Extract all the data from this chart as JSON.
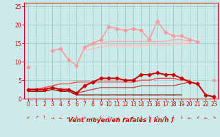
{
  "x": [
    0,
    1,
    2,
    3,
    4,
    5,
    6,
    7,
    8,
    9,
    10,
    11,
    12,
    13,
    14,
    15,
    16,
    17,
    18,
    19,
    20,
    21,
    22,
    23
  ],
  "series": [
    {
      "y": [
        8.5,
        null,
        null,
        13.0,
        13.5,
        10.5,
        9.0,
        14.0,
        15.0,
        16.0,
        19.5,
        19.0,
        18.5,
        19.0,
        18.5,
        16.0,
        21.0,
        18.0,
        17.0,
        17.0,
        16.0,
        15.5,
        null,
        5.0
      ],
      "color": "#ff9999",
      "lw": 1.2,
      "marker": "D",
      "ms": 2.5
    },
    {
      "y": [
        10.5,
        null,
        null,
        null,
        null,
        null,
        null,
        14.0,
        14.5,
        15.0,
        15.5,
        15.5,
        15.5,
        15.5,
        15.5,
        15.5,
        15.5,
        15.5,
        16.0,
        16.0,
        15.5,
        null,
        null,
        null
      ],
      "color": "#ffaaaa",
      "lw": 1.0,
      "marker": null,
      "ms": 0
    },
    {
      "y": [
        null,
        null,
        null,
        null,
        null,
        null,
        null,
        13.0,
        13.5,
        14.0,
        14.5,
        14.5,
        14.5,
        14.5,
        14.5,
        14.5,
        14.5,
        14.5,
        15.0,
        15.0,
        15.0,
        null,
        null,
        null
      ],
      "color": "#ffbbbb",
      "lw": 1.0,
      "marker": null,
      "ms": 0
    },
    {
      "y": [
        null,
        null,
        null,
        null,
        null,
        null,
        null,
        null,
        null,
        null,
        14.0,
        14.0,
        14.0,
        14.0,
        14.0,
        14.5,
        14.5,
        14.5,
        14.5,
        14.5,
        14.5,
        null,
        null,
        null
      ],
      "color": "#ffcccc",
      "lw": 0.8,
      "marker": null,
      "ms": 0
    },
    {
      "y": [
        2.0,
        2.0,
        2.0,
        2.5,
        2.0,
        2.0,
        1.0,
        1.0,
        1.0,
        1.0,
        1.0,
        1.0,
        1.0,
        1.0,
        1.0,
        1.0,
        1.0,
        1.0,
        1.0,
        1.0,
        null,
        null,
        null,
        null
      ],
      "color": "#880000",
      "lw": 1.0,
      "marker": null,
      "ms": 0
    },
    {
      "y": [
        2.5,
        2.5,
        2.5,
        3.0,
        2.5,
        2.0,
        1.5,
        2.0,
        2.5,
        3.0,
        3.0,
        3.0,
        3.0,
        3.0,
        3.5,
        3.5,
        3.5,
        3.5,
        3.5,
        4.0,
        4.5,
        null,
        null,
        null
      ],
      "color": "#cc4444",
      "lw": 1.0,
      "marker": null,
      "ms": 0
    },
    {
      "y": [
        2.5,
        2.5,
        3.0,
        3.5,
        4.0,
        4.0,
        4.5,
        4.5,
        4.5,
        4.5,
        4.5,
        4.5,
        4.5,
        4.5,
        5.0,
        5.0,
        5.5,
        5.5,
        5.5,
        5.0,
        5.0,
        null,
        null,
        null
      ],
      "color": "#ff4444",
      "lw": 1.0,
      "marker": null,
      "ms": 0
    },
    {
      "y": [
        2.5,
        2.5,
        2.5,
        3.0,
        2.5,
        2.5,
        1.5,
        3.5,
        4.5,
        5.5,
        5.5,
        5.5,
        5.0,
        5.0,
        6.5,
        6.5,
        7.0,
        6.5,
        6.5,
        5.5,
        4.5,
        4.0,
        1.0,
        0.5
      ],
      "color": "#cc0000",
      "lw": 1.5,
      "marker": "D",
      "ms": 2.5
    }
  ],
  "arrow_chars": [
    "↙",
    "↗",
    "↑",
    "→",
    "←",
    "←",
    "↓",
    "↓",
    "→",
    "↓",
    "↓",
    "→",
    "←",
    "↓",
    "↓",
    "↓",
    "↖",
    "↖",
    "↓",
    "↓",
    "←",
    "↙",
    "←",
    "↘"
  ],
  "xlabel": "Vent moyen/en rafales ( kn/h )",
  "xlim": [
    -0.5,
    23.5
  ],
  "ylim": [
    0,
    26
  ],
  "yticks": [
    0,
    5,
    10,
    15,
    20,
    25
  ],
  "xticks": [
    0,
    1,
    2,
    3,
    4,
    5,
    6,
    7,
    8,
    9,
    10,
    11,
    12,
    13,
    14,
    15,
    16,
    17,
    18,
    19,
    20,
    21,
    22,
    23
  ],
  "bg_color": "#cceaea",
  "grid_color": "#99cccc",
  "red_color": "#cc0000"
}
